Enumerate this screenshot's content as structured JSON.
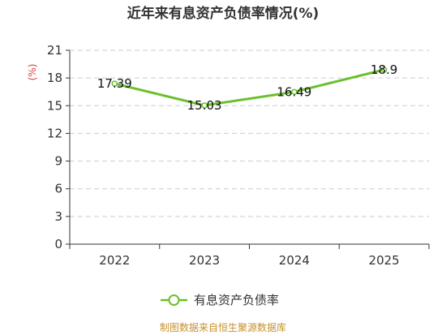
{
  "chart_data": {
    "type": "line",
    "title": "近年来有息资产负债率情况(%)",
    "unit_label": "(%)",
    "categories": [
      "2022",
      "2023",
      "2024",
      "2025"
    ],
    "series": [
      {
        "name": "有息资产负债率",
        "values": [
          17.39,
          15.03,
          16.49,
          18.9
        ],
        "labels": [
          "17.39",
          "15.03",
          "16.49",
          "18.9"
        ],
        "color": "#6ac02a"
      }
    ],
    "ylim": [
      0,
      21
    ],
    "yticks": [
      0,
      3,
      6,
      9,
      12,
      15,
      18,
      21
    ],
    "grid": true,
    "legend_position": "bottom",
    "source": "制图数据来自恒生聚源数据库"
  }
}
